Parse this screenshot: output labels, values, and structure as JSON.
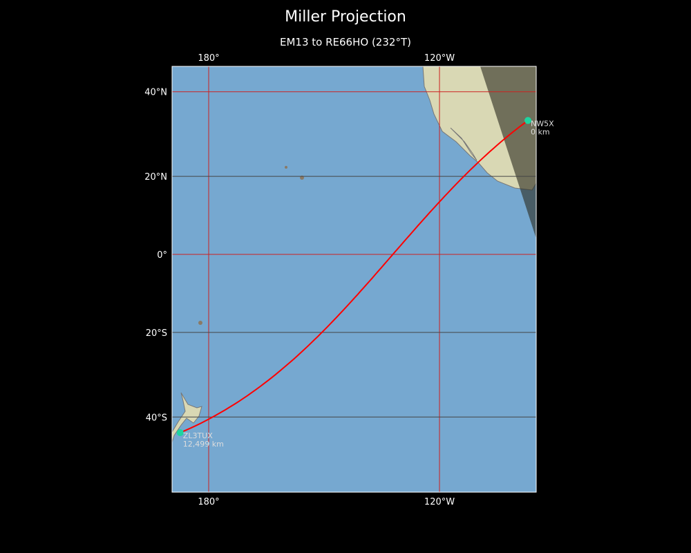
{
  "title": "Miller Projection",
  "subtitle": "EM13 to RE66HO (232°T)",
  "colors": {
    "ocean": "#76a8d0",
    "land": "#d9d8b4",
    "path": "#ff0000",
    "station": "#1ed4a0",
    "grid_major": "#cc2020",
    "grid_minor": "#444444",
    "night": "#3a3a2e"
  },
  "axes": {
    "lon_ticks": [
      {
        "lon": 180,
        "label": "180°"
      },
      {
        "lon": -120,
        "label": "120°W"
      }
    ],
    "lat_ticks": [
      {
        "lat": 40,
        "label": "40°N"
      },
      {
        "lat": 20,
        "label": "20°N"
      },
      {
        "lat": 0,
        "label": "0°"
      },
      {
        "lat": -20,
        "label": "20°S"
      },
      {
        "lat": -40,
        "label": "40°S"
      }
    ]
  },
  "stations": [
    {
      "call": "NW5X",
      "distance": "0 km",
      "lat": 33.5,
      "lon": -97
    },
    {
      "call": "ZL3TUX",
      "distance": "12,499 km",
      "lat": -43.4,
      "lon": 172.6
    }
  ]
}
